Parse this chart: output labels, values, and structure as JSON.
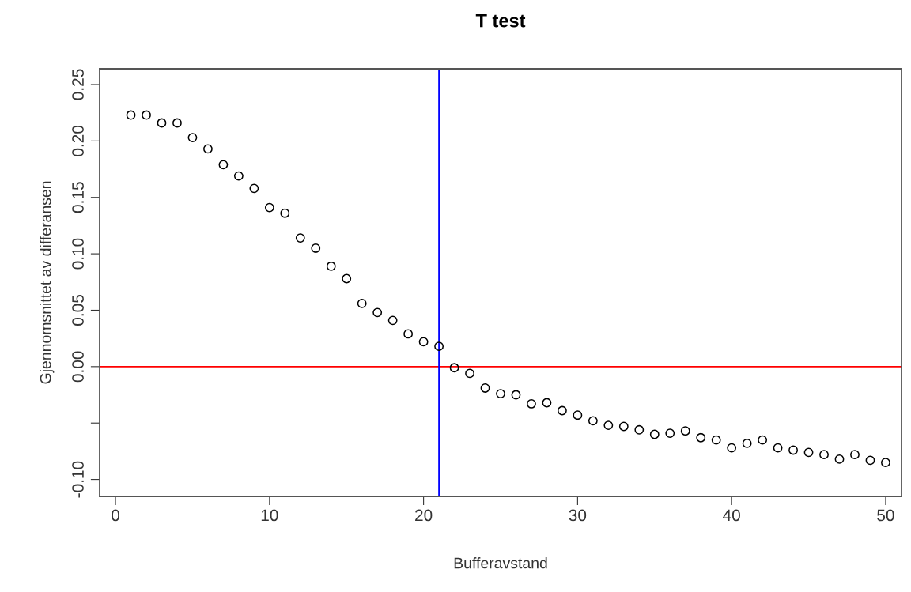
{
  "chart_data": {
    "type": "scatter",
    "title": "T test",
    "xlabel": "Bufferavstand",
    "ylabel": "Gjennomsnittet av differansen",
    "x": [
      1,
      2,
      3,
      4,
      5,
      6,
      7,
      8,
      9,
      10,
      11,
      12,
      13,
      14,
      15,
      16,
      17,
      18,
      19,
      20,
      21,
      22,
      23,
      24,
      25,
      26,
      27,
      28,
      29,
      30,
      31,
      32,
      33,
      34,
      35,
      36,
      37,
      38,
      39,
      40,
      41,
      42,
      43,
      44,
      45,
      46,
      47,
      48,
      49,
      50
    ],
    "series": [
      {
        "color": "#000000",
        "values": [
          0.223,
          0.223,
          0.216,
          0.216,
          0.203,
          0.193,
          0.179,
          0.169,
          0.158,
          0.141,
          0.136,
          0.114,
          0.105,
          0.089,
          0.078,
          0.056,
          0.048,
          0.041,
          0.029,
          0.022,
          0.018,
          -0.001,
          -0.006,
          -0.019,
          -0.024,
          -0.025,
          -0.033,
          -0.032,
          -0.039,
          -0.043,
          -0.048,
          -0.052,
          -0.053,
          -0.056,
          -0.06,
          -0.059,
          -0.057,
          -0.063,
          -0.065,
          -0.072,
          -0.068,
          -0.065,
          -0.072,
          -0.074,
          -0.076,
          -0.078,
          -0.082,
          -0.078,
          -0.083,
          -0.085
        ]
      }
    ],
    "xlim": [
      -1.03,
      51.03
    ],
    "ylim": [
      -0.115,
      0.264
    ],
    "xticks": [
      0,
      10,
      20,
      30,
      40,
      50
    ],
    "yticks": [
      {
        "value": -0.1,
        "label": "-0.10"
      },
      {
        "value": -0.05,
        "label": null
      },
      {
        "value": 0,
        "label": "0.00"
      },
      {
        "value": 0.05,
        "label": "0.05"
      },
      {
        "value": 0.1,
        "label": "0.10"
      },
      {
        "value": 0.15,
        "label": "0.15"
      },
      {
        "value": 0.2,
        "label": "0.20"
      },
      {
        "value": 0.25,
        "label": "0.25"
      }
    ],
    "ref_lines": [
      {
        "axis": "y",
        "value": 0,
        "color": "#ff0000"
      },
      {
        "axis": "x",
        "value": 21,
        "color": "#0000ff"
      }
    ],
    "marker": "circle",
    "grid": false,
    "legend": false
  }
}
